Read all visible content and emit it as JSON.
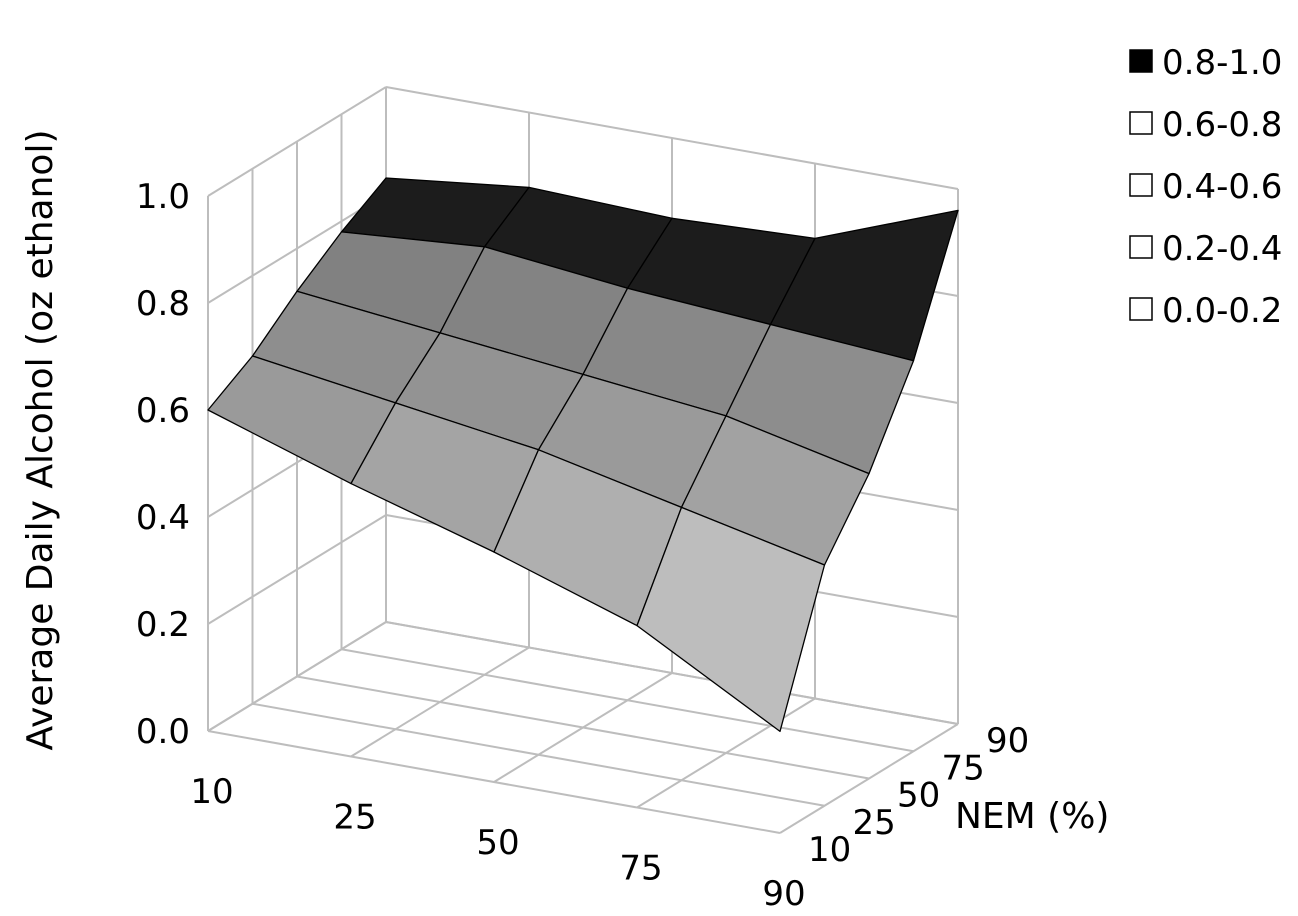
{
  "chart_data": {
    "type": "surface",
    "zlabel": "Average Daily Alcohol (oz ethanol)",
    "ylabel": "NEM (%)",
    "xlabel": "",
    "x": [
      "10",
      "25",
      "50",
      "75",
      "90"
    ],
    "y": [
      "10",
      "25",
      "50",
      "75",
      "90"
    ],
    "z_ticks": [
      "0.0",
      "0.2",
      "0.4",
      "0.6",
      "0.8",
      "1.0"
    ],
    "zlim": [
      0,
      1.0
    ],
    "values": [
      [
        0.6,
        0.65,
        0.72,
        0.78,
        0.83
      ],
      [
        0.51,
        0.61,
        0.69,
        0.8,
        0.86
      ],
      [
        0.43,
        0.57,
        0.66,
        0.77,
        0.85
      ],
      [
        0.34,
        0.51,
        0.63,
        0.75,
        0.86
      ],
      [
        0.19,
        0.45,
        0.57,
        0.73,
        0.96
      ]
    ],
    "legend": [
      {
        "label": "0.8-1.0",
        "color": "#000000"
      },
      {
        "label": "0.6-0.8",
        "color": "#ffffff"
      },
      {
        "label": "0.4-0.6",
        "color": "#ffffff"
      },
      {
        "label": "0.2-0.4",
        "color": "#ffffff"
      },
      {
        "label": "0.0-0.2",
        "color": "#ffffff"
      }
    ],
    "legend_position": "top-right",
    "grid": true
  }
}
